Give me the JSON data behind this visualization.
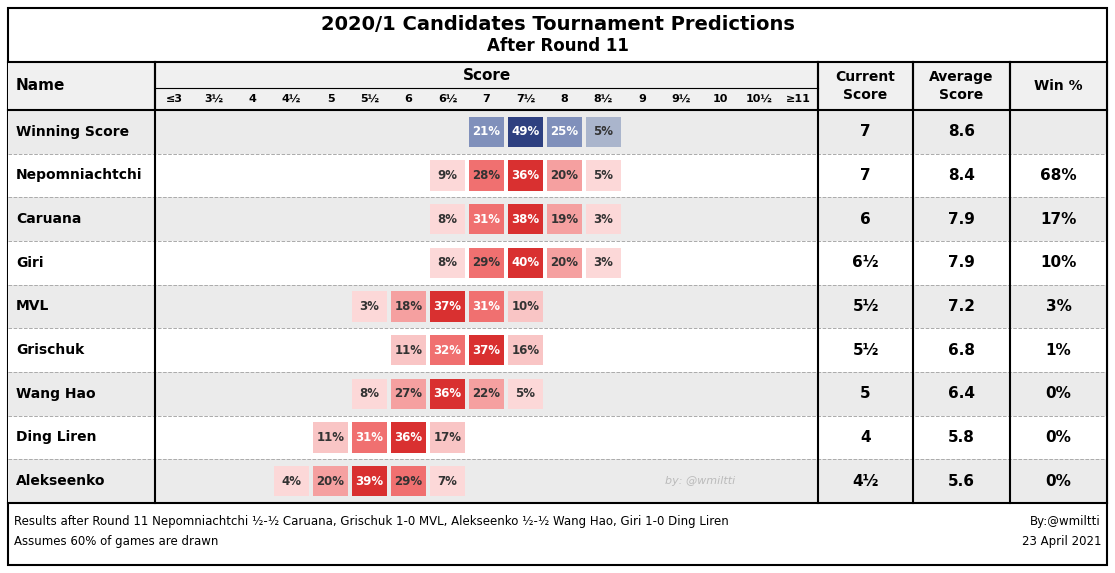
{
  "title_line1": "2020/1 Candidates Tournament Predictions",
  "title_line2": "After Round 11",
  "score_columns": [
    "≤3",
    "3½",
    "4",
    "4½",
    "5",
    "5½",
    "6",
    "6½",
    "7",
    "7½",
    "8",
    "8½",
    "9",
    "9½",
    "10",
    "10½",
    "≥11"
  ],
  "rows": [
    {
      "name": "Winning Score",
      "data": {
        "7": 21,
        "7.5": 49,
        "8": 25,
        "8.5": 5
      },
      "current_score": "7",
      "avg_score": "8.6",
      "win_pct": "",
      "bg": "#ebebeb",
      "is_winning_score": true
    },
    {
      "name": "Nepomniachtchi",
      "data": {
        "6.5": 9,
        "7": 28,
        "7.5": 36,
        "8": 20,
        "8.5": 5
      },
      "current_score": "7",
      "avg_score": "8.4",
      "win_pct": "68%",
      "bg": "#ffffff"
    },
    {
      "name": "Caruana",
      "data": {
        "6.5": 8,
        "7": 31,
        "7.5": 38,
        "8": 19,
        "8.5": 3
      },
      "current_score": "6",
      "avg_score": "7.9",
      "win_pct": "17%",
      "bg": "#ebebeb"
    },
    {
      "name": "Giri",
      "data": {
        "6.5": 8,
        "7": 29,
        "7.5": 40,
        "8": 20,
        "8.5": 3
      },
      "current_score": "6½",
      "avg_score": "7.9",
      "win_pct": "10%",
      "bg": "#ffffff"
    },
    {
      "name": "MVL",
      "data": {
        "5.5": 3,
        "6": 18,
        "6.5": 37,
        "7": 31,
        "7.5": 10
      },
      "current_score": "5½",
      "avg_score": "7.2",
      "win_pct": "3%",
      "bg": "#ebebeb"
    },
    {
      "name": "Grischuk",
      "data": {
        "6": 11,
        "6.5": 32,
        "7": 37,
        "7.5": 16
      },
      "current_score": "5½",
      "avg_score": "6.8",
      "win_pct": "1%",
      "bg": "#ffffff"
    },
    {
      "name": "Wang Hao",
      "data": {
        "5.5": 8,
        "6": 27,
        "6.5": 36,
        "7": 22,
        "7.5": 5
      },
      "current_score": "5",
      "avg_score": "6.4",
      "win_pct": "0%",
      "bg": "#ebebeb"
    },
    {
      "name": "Ding Liren",
      "data": {
        "5": 11,
        "5.5": 31,
        "6": 36,
        "6.5": 17
      },
      "current_score": "4",
      "avg_score": "5.8",
      "win_pct": "0%",
      "bg": "#ffffff"
    },
    {
      "name": "Alekseenko",
      "data": {
        "4.5": 4,
        "5": 20,
        "5.5": 39,
        "6": 29,
        "6.5": 7
      },
      "current_score": "4½",
      "avg_score": "5.6",
      "win_pct": "0%",
      "bg": "#ebebeb"
    }
  ],
  "footer_line1": "Results after Round 11 Nepomniachtchi ½-½ Caruana, Grischuk 1-0 MVL, Alekseenko ½-½ Wang Hao, Giri 1-0 Ding Liren",
  "footer_line2": "Assumes 60% of games are drawn",
  "footer_right1": "By:@wmiltti",
  "footer_right2": "23 April 2021",
  "watermark": "by: @wmiltti"
}
